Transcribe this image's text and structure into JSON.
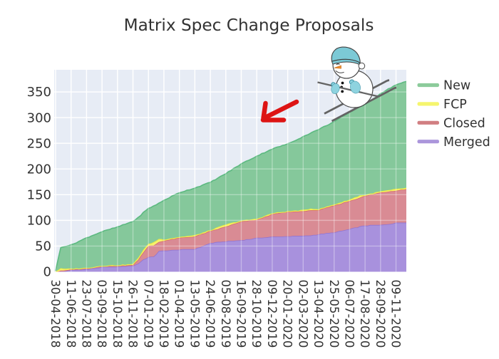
{
  "title": "Matrix Spec Change Proposals",
  "colors": {
    "background": "#ffffff",
    "plot_background": "#e7ecf5",
    "gridline": "#ffffff",
    "text": "#333333",
    "arrow_annotation": "#dd1414",
    "series_fill": {
      "New": "#85c89b",
      "FCP": "#f5f36e",
      "Closed": "#d98b94",
      "Merged": "#a891dd"
    },
    "series_line": {
      "New": "#5cb980",
      "FCP": "#efec43",
      "Closed": "#d4686f",
      "Merged": "#9173d1"
    },
    "snowman_hat": "#7cc9d6",
    "snowman_mitten": "#8ed3df",
    "ski": "#636363"
  },
  "legend": {
    "entries": [
      {
        "label": "New",
        "color": "#8ccb9b"
      },
      {
        "label": "FCP",
        "color": "#f5f56e"
      },
      {
        "label": "Closed",
        "color": "#d17f82"
      },
      {
        "label": "Merged",
        "color": "#ab96db"
      }
    ]
  },
  "chart_data": {
    "type": "area",
    "stacked": true,
    "title": "Matrix Spec Change Proposals",
    "xlabel": "",
    "ylabel": "",
    "grid": true,
    "legend_position": "right",
    "ylim": [
      0,
      393
    ],
    "yticks": [
      0,
      50,
      100,
      150,
      200,
      250,
      300,
      350
    ],
    "x_start_date": "30-04-2018",
    "x_end_date": "07-12-2020",
    "x_unit": "weeks",
    "weeks_total": 136,
    "weeks_per_tick": 6,
    "x_tick_labels": [
      "30-04-2018",
      "11-06-2018",
      "23-07-2018",
      "03-09-2018",
      "15-10-2018",
      "26-11-2018",
      "07-01-2019",
      "18-02-2019",
      "01-04-2019",
      "13-05-2019",
      "24-06-2019",
      "05-08-2019",
      "16-09-2019",
      "28-10-2019",
      "09-12-2019",
      "20-01-2020",
      "02-03-2020",
      "13-04-2020",
      "25-05-2020",
      "06-07-2020",
      "17-08-2020",
      "28-09-2020",
      "09-11-2020"
    ],
    "anchor_weeks": [
      0,
      1,
      2,
      3,
      6,
      12,
      18,
      24,
      30,
      32,
      34,
      36,
      38,
      40,
      42,
      48,
      54,
      60,
      66,
      72,
      78,
      84,
      90,
      96,
      99,
      102,
      108,
      114,
      118,
      120,
      126,
      132,
      136
    ],
    "series": [
      {
        "name": "Merged",
        "values": [
          0,
          0,
          0.5,
          0.5,
          3.5,
          5,
          9,
          9.5,
          11.5,
          16,
          24,
          28.5,
          29,
          40,
          41,
          43,
          44,
          56,
          59,
          61.5,
          65.5,
          68,
          69,
          69.5,
          71,
          73,
          76.5,
          83,
          88,
          90,
          91,
          95,
          95.5
        ]
      },
      {
        "name": "Closed",
        "values": [
          0,
          0.5,
          2,
          1,
          1,
          1,
          1.5,
          2,
          1.5,
          8,
          14,
          21.5,
          22,
          18,
          19.5,
          22.8,
          25,
          23,
          29,
          36,
          35.5,
          44.5,
          47.3,
          48.5,
          48,
          47,
          52.5,
          55,
          56.5,
          57.6,
          63.3,
          63.3,
          65.2
        ]
      },
      {
        "name": "FCP",
        "values": [
          0.3,
          3,
          4.5,
          4,
          1.5,
          1.5,
          1.5,
          1.5,
          2,
          3,
          5,
          4,
          6.5,
          6,
          2.5,
          2,
          2,
          2,
          4,
          2,
          2,
          1.5,
          1.5,
          2,
          4,
          2,
          2,
          2.5,
          4,
          2,
          2,
          2.5,
          2.5
        ]
      },
      {
        "name": "New",
        "values": [
          1.7,
          21.5,
          40,
          43.5,
          46,
          58.5,
          66,
          74,
          83,
          78,
          72,
          69,
          70.5,
          69,
          76,
          86.2,
          92,
          93,
          99,
          110.5,
          122,
          125,
          130.9,
          143,
          147,
          155,
          161,
          169.5,
          173.5,
          175.4,
          190.7,
          203.2,
          206.8
        ]
      }
    ],
    "stack_order_bottom_to_top": [
      "Merged",
      "Closed",
      "FCP",
      "New"
    ],
    "totals_at_ticks": [
      2,
      52,
      66,
      78,
      87,
      98,
      123,
      139,
      154,
      163,
      174,
      191,
      210,
      225,
      239,
      249,
      263,
      277,
      292,
      310,
      325,
      347,
      364
    ]
  },
  "annotations": {
    "arrow": {
      "shape": "hand-drawn-arrow",
      "direction": "down-left",
      "color": "#dd1414"
    },
    "snowman": {
      "description": "skiing snowman clipart",
      "hat_color": "#7cc9d6"
    }
  }
}
